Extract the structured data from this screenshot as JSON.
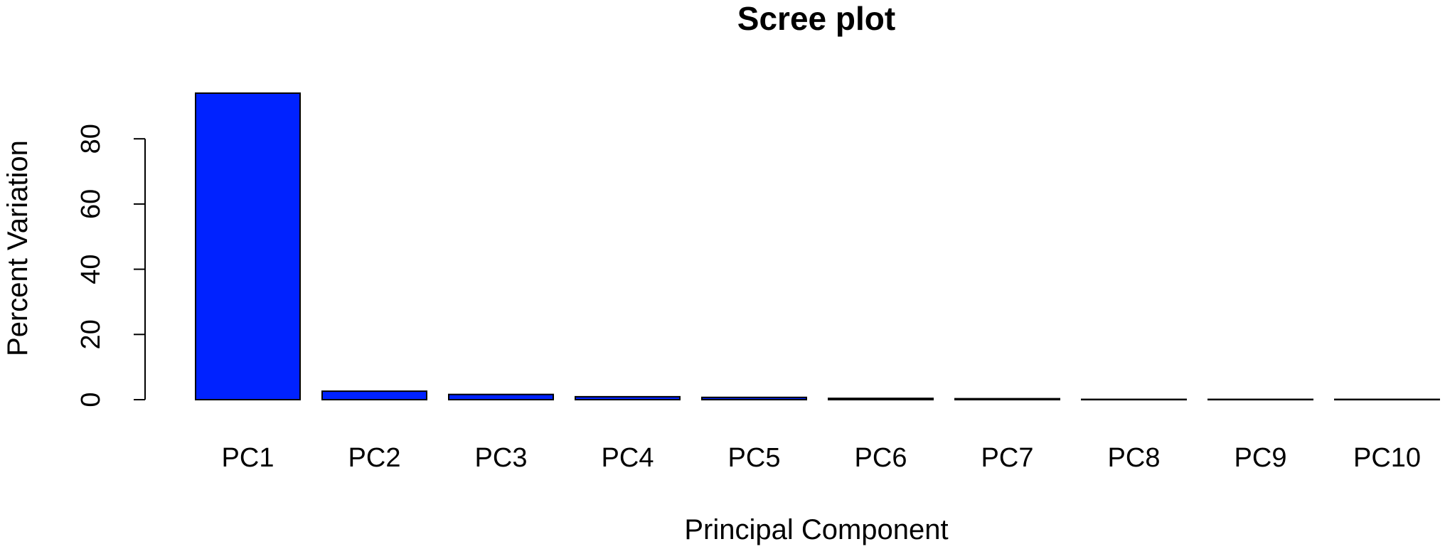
{
  "chart_data": {
    "type": "bar",
    "title": "Scree plot",
    "xlabel": "Principal Component",
    "ylabel": "Percent Variation",
    "categories": [
      "PC1",
      "PC2",
      "PC3",
      "PC4",
      "PC5",
      "PC6",
      "PC7",
      "PC8",
      "PC9",
      "PC10"
    ],
    "values": [
      94.0,
      2.6,
      1.6,
      0.9,
      0.7,
      0.4,
      0.3,
      0.1,
      0.1,
      0.1
    ],
    "yticks": [
      "0",
      "20",
      "40",
      "60",
      "80"
    ],
    "ylim": [
      0,
      94
    ],
    "grid": false,
    "bar_color": "#0022ff"
  }
}
